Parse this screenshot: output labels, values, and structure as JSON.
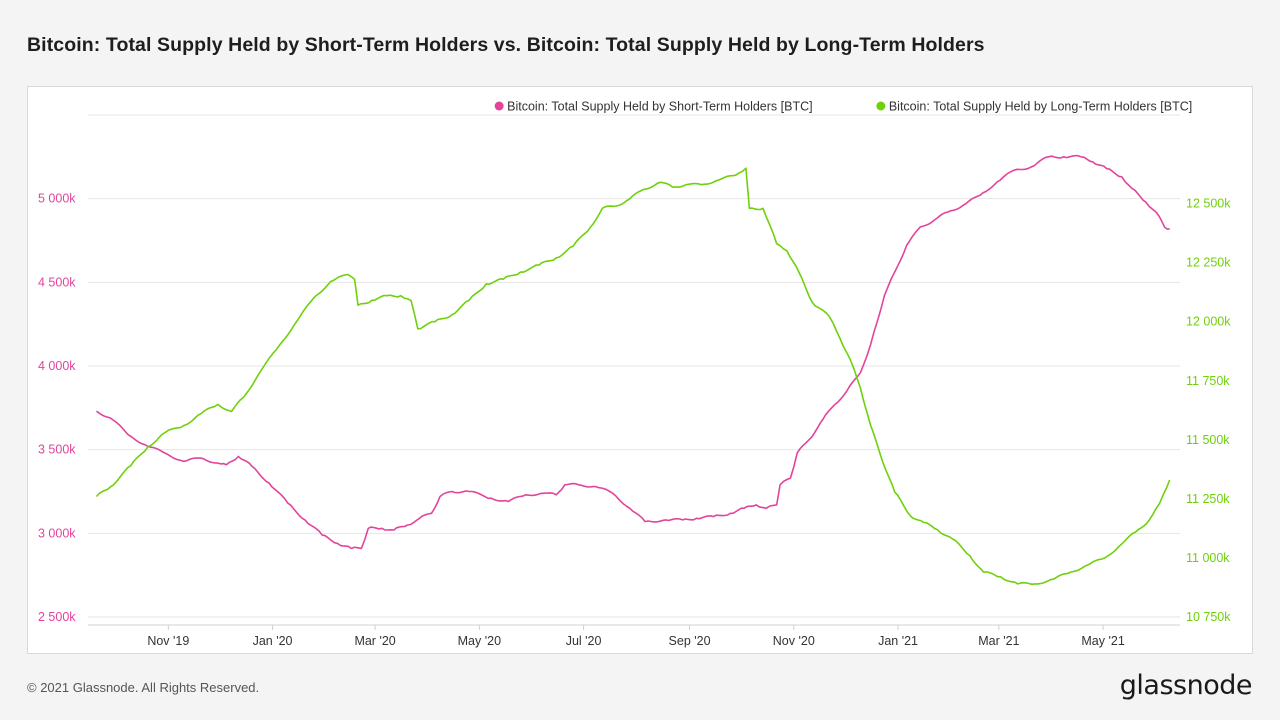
{
  "title": "Bitcoin: Total Supply Held by Short-Term Holders vs. Bitcoin: Total Supply Held by Long-Term Holders",
  "footer": "© 2021 Glassnode. All Rights Reserved.",
  "brand": "glassnode",
  "colors": {
    "sth": "#e2449c",
    "lth": "#6fd10a",
    "grid": "#e6e6e6",
    "axis": "#d0d0d0"
  },
  "chart_data": {
    "type": "line",
    "grid": true,
    "legend_position": "top-right",
    "x_axis": {
      "type": "date",
      "range": [
        "2019-09-15",
        "2021-06-15"
      ],
      "ticks": [
        {
          "date": "2019-11-01",
          "label": "Nov '19"
        },
        {
          "date": "2020-01-01",
          "label": "Jan '20"
        },
        {
          "date": "2020-03-01",
          "label": "Mar '20"
        },
        {
          "date": "2020-05-01",
          "label": "May '20"
        },
        {
          "date": "2020-07-01",
          "label": "Jul '20"
        },
        {
          "date": "2020-09-01",
          "label": "Sep '20"
        },
        {
          "date": "2020-11-01",
          "label": "Nov '20"
        },
        {
          "date": "2021-01-01",
          "label": "Jan '21"
        },
        {
          "date": "2021-03-01",
          "label": "Mar '21"
        },
        {
          "date": "2021-05-01",
          "label": "May '21"
        }
      ]
    },
    "y_left": {
      "range": [
        2500000,
        5500000
      ],
      "ticks": [
        {
          "value": 2500000,
          "label": "2 500k"
        },
        {
          "value": 3000000,
          "label": "3 000k"
        },
        {
          "value": 3500000,
          "label": "3 500k"
        },
        {
          "value": 4000000,
          "label": "4 000k"
        },
        {
          "value": 4500000,
          "label": "4 500k"
        },
        {
          "value": 5000000,
          "label": "5 000k"
        }
      ]
    },
    "y_right": {
      "range": [
        10750000,
        12875000
      ],
      "ticks": [
        {
          "value": 10750000,
          "label": "10 750k"
        },
        {
          "value": 11000000,
          "label": "11 000k"
        },
        {
          "value": 11250000,
          "label": "11 250k"
        },
        {
          "value": 11500000,
          "label": "11 500k"
        },
        {
          "value": 11750000,
          "label": "11 750k"
        },
        {
          "value": 12000000,
          "label": "12 000k"
        },
        {
          "value": 12250000,
          "label": "12 250k"
        },
        {
          "value": 12500000,
          "label": "12 500k"
        }
      ]
    },
    "series": [
      {
        "name": "Bitcoin: Total Supply Held by Short-Term Holders [BTC]",
        "axis": "left",
        "color": "#e2449c",
        "points": [
          [
            "2019-09-20",
            3730000
          ],
          [
            "2019-09-28",
            3690000
          ],
          [
            "2019-10-10",
            3580000
          ],
          [
            "2019-10-20",
            3520000
          ],
          [
            "2019-10-30",
            3480000
          ],
          [
            "2019-11-10",
            3430000
          ],
          [
            "2019-11-20",
            3450000
          ],
          [
            "2019-11-30",
            3420000
          ],
          [
            "2019-12-05",
            3410000
          ],
          [
            "2019-12-12",
            3460000
          ],
          [
            "2019-12-20",
            3400000
          ],
          [
            "2019-12-30",
            3300000
          ],
          [
            "2020-01-10",
            3180000
          ],
          [
            "2020-01-20",
            3080000
          ],
          [
            "2020-01-30",
            2990000
          ],
          [
            "2020-02-08",
            2940000
          ],
          [
            "2020-02-16",
            2910000
          ],
          [
            "2020-02-22",
            2910000
          ],
          [
            "2020-02-26",
            3030000
          ],
          [
            "2020-03-05",
            3030000
          ],
          [
            "2020-03-12",
            3020000
          ],
          [
            "2020-03-20",
            3050000
          ],
          [
            "2020-03-27",
            3090000
          ],
          [
            "2020-04-03",
            3120000
          ],
          [
            "2020-04-08",
            3220000
          ],
          [
            "2020-04-15",
            3250000
          ],
          [
            "2020-04-25",
            3250000
          ],
          [
            "2020-05-08",
            3210000
          ],
          [
            "2020-05-18",
            3190000
          ],
          [
            "2020-05-28",
            3230000
          ],
          [
            "2020-06-08",
            3240000
          ],
          [
            "2020-06-15",
            3230000
          ],
          [
            "2020-06-20",
            3290000
          ],
          [
            "2020-06-28",
            3290000
          ],
          [
            "2020-07-08",
            3280000
          ],
          [
            "2020-07-18",
            3240000
          ],
          [
            "2020-07-28",
            3150000
          ],
          [
            "2020-08-06",
            3070000
          ],
          [
            "2020-08-18",
            3080000
          ],
          [
            "2020-08-28",
            3080000
          ],
          [
            "2020-09-05",
            3090000
          ],
          [
            "2020-09-15",
            3100000
          ],
          [
            "2020-09-25",
            3120000
          ],
          [
            "2020-10-03",
            3150000
          ],
          [
            "2020-10-10",
            3170000
          ],
          [
            "2020-10-16",
            3150000
          ],
          [
            "2020-10-22",
            3170000
          ],
          [
            "2020-10-24",
            3290000
          ],
          [
            "2020-10-30",
            3330000
          ],
          [
            "2020-11-03",
            3480000
          ],
          [
            "2020-11-10",
            3560000
          ],
          [
            "2020-11-18",
            3680000
          ],
          [
            "2020-11-25",
            3770000
          ],
          [
            "2020-12-02",
            3850000
          ],
          [
            "2020-12-10",
            3960000
          ],
          [
            "2020-12-16",
            4130000
          ],
          [
            "2020-12-20",
            4270000
          ],
          [
            "2020-12-24",
            4420000
          ],
          [
            "2020-12-30",
            4560000
          ],
          [
            "2021-01-06",
            4720000
          ],
          [
            "2021-01-14",
            4830000
          ],
          [
            "2021-01-22",
            4870000
          ],
          [
            "2021-01-30",
            4920000
          ],
          [
            "2021-02-08",
            4960000
          ],
          [
            "2021-02-18",
            5020000
          ],
          [
            "2021-02-28",
            5100000
          ],
          [
            "2021-03-10",
            5170000
          ],
          [
            "2021-03-20",
            5190000
          ],
          [
            "2021-03-30",
            5250000
          ],
          [
            "2021-04-08",
            5250000
          ],
          [
            "2021-04-18",
            5250000
          ],
          [
            "2021-04-25",
            5220000
          ],
          [
            "2021-05-03",
            5180000
          ],
          [
            "2021-05-12",
            5130000
          ],
          [
            "2021-05-18",
            5060000
          ],
          [
            "2021-05-26",
            4980000
          ],
          [
            "2021-06-01",
            4920000
          ],
          [
            "2021-06-06",
            4830000
          ],
          [
            "2021-06-09",
            4820000
          ]
        ]
      },
      {
        "name": "Bitcoin: Total Supply Held by Long-Term Holders [BTC]",
        "axis": "right",
        "color": "#6fd10a",
        "points": [
          [
            "2019-09-20",
            11260000
          ],
          [
            "2019-09-28",
            11300000
          ],
          [
            "2019-10-10",
            11390000
          ],
          [
            "2019-10-20",
            11470000
          ],
          [
            "2019-10-30",
            11530000
          ],
          [
            "2019-11-10",
            11560000
          ],
          [
            "2019-11-20",
            11610000
          ],
          [
            "2019-11-30",
            11650000
          ],
          [
            "2019-12-08",
            11620000
          ],
          [
            "2019-12-15",
            11680000
          ],
          [
            "2019-12-25",
            11790000
          ],
          [
            "2020-01-05",
            11900000
          ],
          [
            "2020-01-15",
            12000000
          ],
          [
            "2020-01-25",
            12100000
          ],
          [
            "2020-02-04",
            12170000
          ],
          [
            "2020-02-14",
            12200000
          ],
          [
            "2020-02-18",
            12180000
          ],
          [
            "2020-02-20",
            12070000
          ],
          [
            "2020-02-28",
            12090000
          ],
          [
            "2020-03-08",
            12110000
          ],
          [
            "2020-03-16",
            12110000
          ],
          [
            "2020-03-22",
            12090000
          ],
          [
            "2020-03-26",
            11970000
          ],
          [
            "2020-04-05",
            12000000
          ],
          [
            "2020-04-15",
            12030000
          ],
          [
            "2020-04-25",
            12090000
          ],
          [
            "2020-05-05",
            12160000
          ],
          [
            "2020-05-15",
            12180000
          ],
          [
            "2020-05-25",
            12210000
          ],
          [
            "2020-06-05",
            12240000
          ],
          [
            "2020-06-15",
            12270000
          ],
          [
            "2020-06-25",
            12320000
          ],
          [
            "2020-07-05",
            12400000
          ],
          [
            "2020-07-12",
            12480000
          ],
          [
            "2020-07-20",
            12490000
          ],
          [
            "2020-07-28",
            12520000
          ],
          [
            "2020-08-05",
            12560000
          ],
          [
            "2020-08-15",
            12590000
          ],
          [
            "2020-08-22",
            12570000
          ],
          [
            "2020-08-30",
            12580000
          ],
          [
            "2020-09-08",
            12580000
          ],
          [
            "2020-09-18",
            12600000
          ],
          [
            "2020-09-28",
            12620000
          ],
          [
            "2020-10-04",
            12650000
          ],
          [
            "2020-10-06",
            12480000
          ],
          [
            "2020-10-14",
            12480000
          ],
          [
            "2020-10-22",
            12330000
          ],
          [
            "2020-10-28",
            12300000
          ],
          [
            "2020-11-04",
            12210000
          ],
          [
            "2020-11-12",
            12080000
          ],
          [
            "2020-11-22",
            12020000
          ],
          [
            "2020-11-28",
            11930000
          ],
          [
            "2020-12-04",
            11840000
          ],
          [
            "2020-12-10",
            11720000
          ],
          [
            "2020-12-16",
            11560000
          ],
          [
            "2020-12-22",
            11430000
          ],
          [
            "2020-12-30",
            11280000
          ],
          [
            "2021-01-08",
            11180000
          ],
          [
            "2021-01-16",
            11150000
          ],
          [
            "2021-01-24",
            11120000
          ],
          [
            "2021-02-02",
            11080000
          ],
          [
            "2021-02-12",
            11010000
          ],
          [
            "2021-02-20",
            10940000
          ],
          [
            "2021-03-02",
            10920000
          ],
          [
            "2021-03-12",
            10890000
          ],
          [
            "2021-03-22",
            10890000
          ],
          [
            "2021-04-02",
            10910000
          ],
          [
            "2021-04-12",
            10940000
          ],
          [
            "2021-04-22",
            10970000
          ],
          [
            "2021-05-02",
            11000000
          ],
          [
            "2021-05-12",
            11060000
          ],
          [
            "2021-05-20",
            11110000
          ],
          [
            "2021-05-28",
            11160000
          ],
          [
            "2021-06-03",
            11230000
          ],
          [
            "2021-06-09",
            11330000
          ]
        ]
      }
    ]
  }
}
